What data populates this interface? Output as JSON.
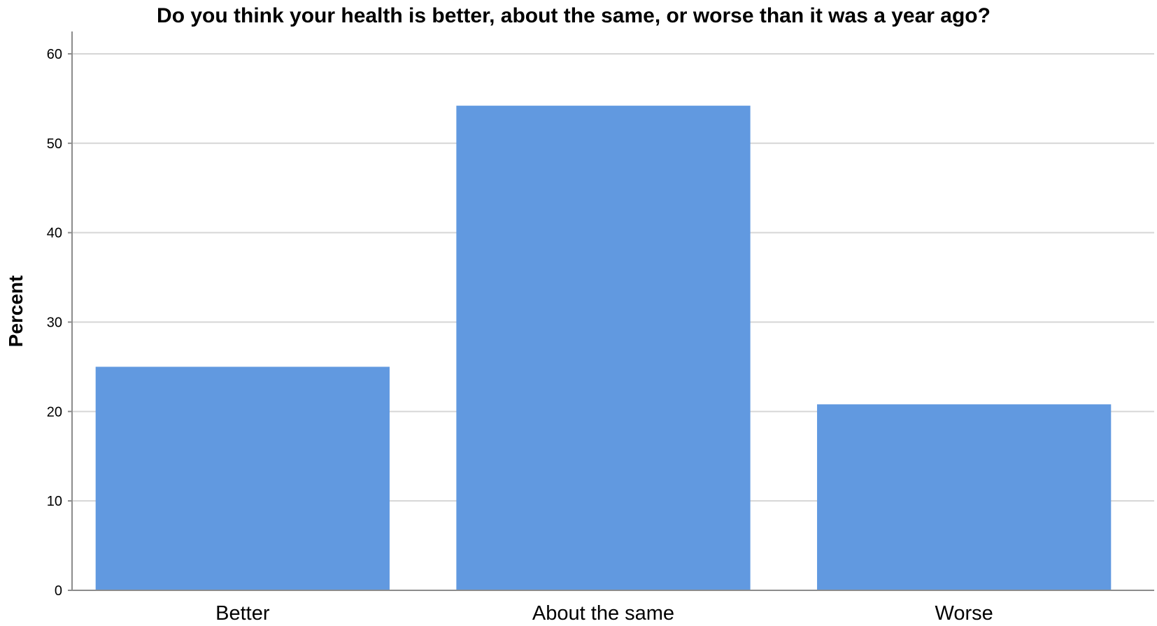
{
  "chart_data": {
    "type": "bar",
    "title": "Do you think your health is better, about the same, or worse than it was a year ago?",
    "xlabel": "",
    "ylabel": "Percent",
    "categories": [
      "Better",
      "About the same",
      "Worse"
    ],
    "values": [
      25,
      54.2,
      20.8
    ],
    "ylim": [
      0,
      62.5
    ],
    "yticks": [
      0,
      10,
      20,
      30,
      40,
      50,
      60
    ],
    "grid": true,
    "bar_color": "#6199e0",
    "grid_color": "#d6d6d6",
    "axis_color": "#8c8c8c"
  }
}
